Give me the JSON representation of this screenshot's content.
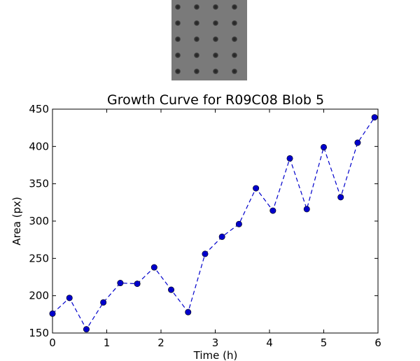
{
  "thumbnail": {
    "rows": 5,
    "cols": 4,
    "background": "#7a7a7a"
  },
  "chart_data": {
    "type": "line",
    "title": "Growth Curve for R09C08 Blob 5",
    "xlabel": "Time (h)",
    "ylabel": "Area (px)",
    "xlim": [
      0,
      6
    ],
    "ylim": [
      150,
      450
    ],
    "xticks": [
      0,
      1,
      2,
      3,
      4,
      5,
      6
    ],
    "yticks": [
      150,
      200,
      250,
      300,
      350,
      400,
      450
    ],
    "grid": false,
    "line_style": "dashed",
    "marker": "circle",
    "color": "#0000cc",
    "series": [
      {
        "x": [
          0.0,
          0.3125,
          0.625,
          0.9375,
          1.25,
          1.5625,
          1.875,
          2.1875,
          2.5,
          2.8125,
          3.125,
          3.4375,
          3.75,
          4.0625,
          4.375,
          4.6875,
          5.0,
          5.3125,
          5.625,
          5.9375
        ],
        "values": [
          176,
          197,
          155,
          191,
          217,
          216,
          238,
          208,
          178,
          256,
          279,
          296,
          344,
          314,
          384,
          316,
          399,
          332,
          405,
          439
        ]
      }
    ]
  }
}
